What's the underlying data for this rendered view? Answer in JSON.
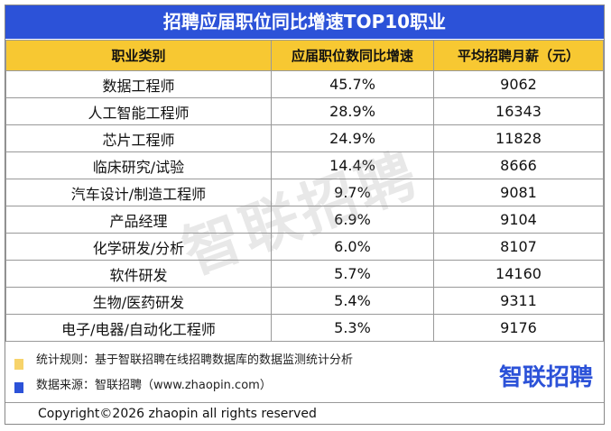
{
  "title": "招聘应届职位同比增速TOP10职业",
  "table": {
    "header": [
      "职业类别",
      "应届职位数同比增速",
      "平均招聘月薪（元）"
    ],
    "rows": [
      [
        "数据工程师",
        "45.7%",
        "9062"
      ],
      [
        "人工智能工程师",
        "28.9%",
        "16343"
      ],
      [
        "芯片工程师",
        "24.9%",
        "11828"
      ],
      [
        "临床研究/试验",
        "14.4%",
        "8666"
      ],
      [
        "汽车设计/制造工程师",
        "9.7%",
        "9081"
      ],
      [
        "产品经理",
        "6.9%",
        "9104"
      ],
      [
        "化学研发/分析",
        "6.0%",
        "8107"
      ],
      [
        "软件研发",
        "5.7%",
        "14160"
      ],
      [
        "生物/医药研发",
        "5.4%",
        "9311"
      ],
      [
        "电子/电器/自动化工程师",
        "5.3%",
        "9176"
      ]
    ]
  },
  "watermark": "智联招聘",
  "notes": [
    "统计规则：基于智联招聘在线招聘数据库的数据监测统计分析",
    "数据来源：智联招聘（www.zhaopin.com）"
  ],
  "logo": "智联招聘",
  "copyright": "Copyright©2026 zhaopin all rights reserved"
}
